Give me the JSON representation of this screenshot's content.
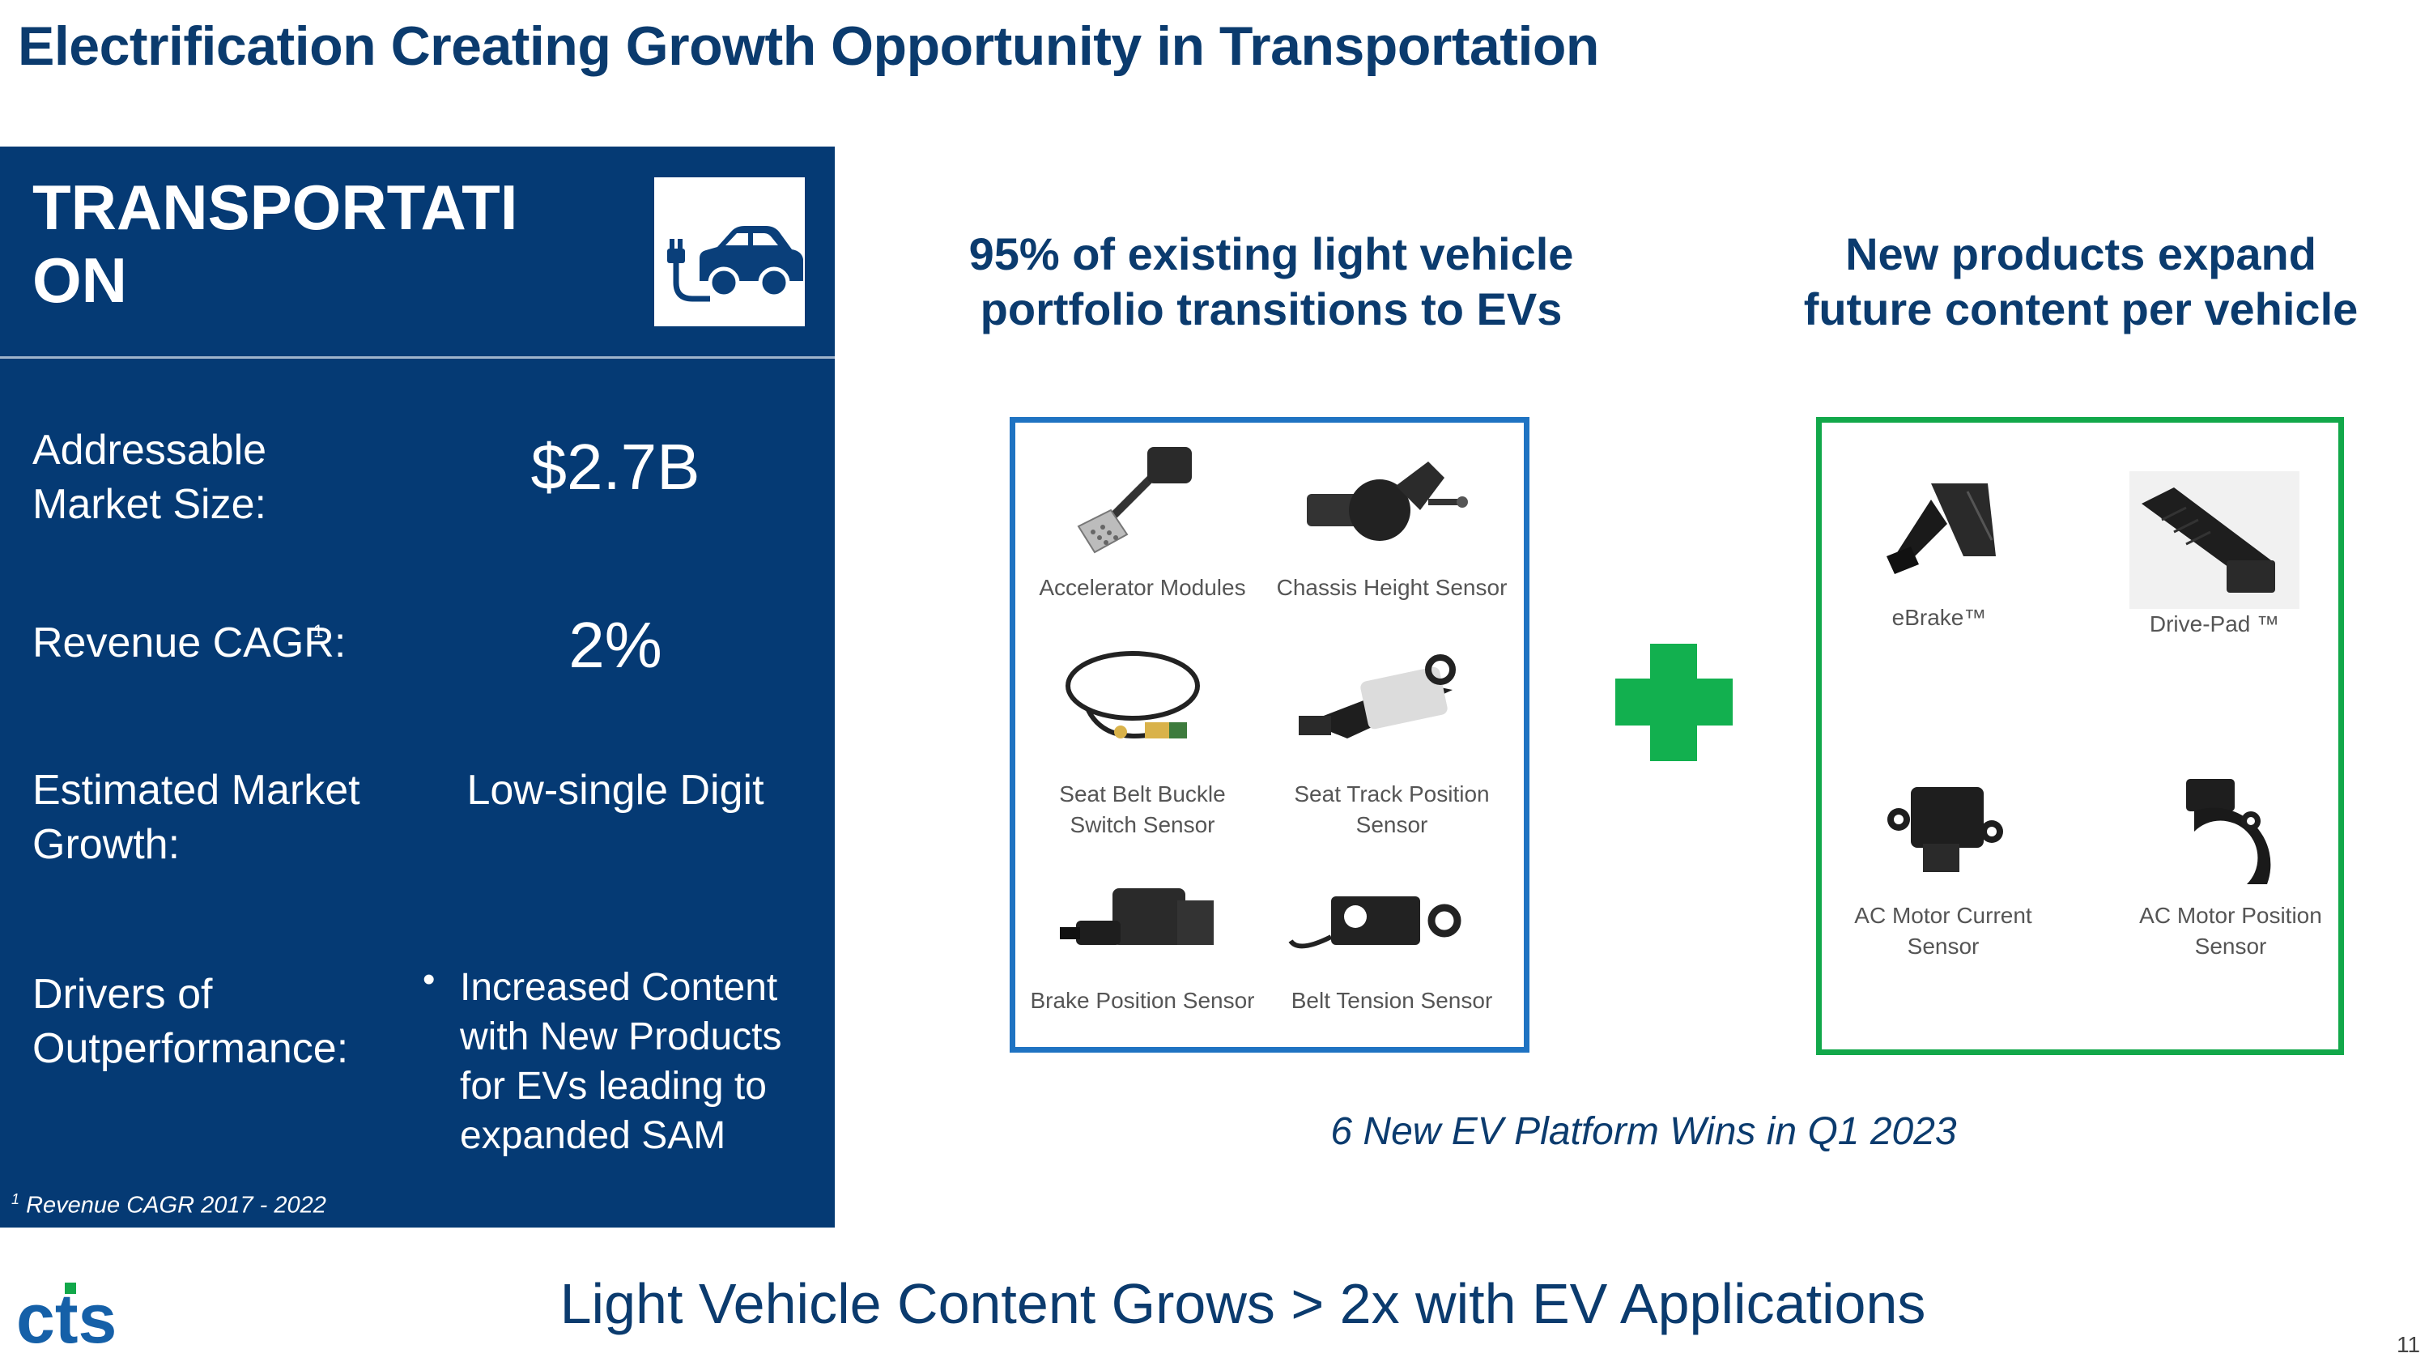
{
  "title": "Electrification Creating Growth Opportunity in Transportation",
  "panel": {
    "heading": "TRANSPORTATION",
    "market_size_label": "Addressable Market Size:",
    "market_size_value": "$2.7B",
    "cagr_label": "Revenue CAGR:",
    "cagr_sup": "1",
    "cagr_value": "2%",
    "growth_label": "Estimated Market Growth:",
    "growth_value": "Low-single Digit",
    "drivers_label": "Drivers of Outperformance:",
    "drivers_item": "Increased Content with New Products for EVs leading to expanded SAM",
    "footnote_sup": "1",
    "footnote": "Revenue CAGR 2017 - 2022"
  },
  "left_column": {
    "heading": "95% of existing light vehicle portfolio transitions to EVs",
    "products": [
      "Accelerator Modules",
      "Chassis Height Sensor",
      "Seat Belt Buckle Switch Sensor",
      "Seat Track Position Sensor",
      "Brake Position Sensor",
      "Belt Tension Sensor"
    ]
  },
  "right_column": {
    "heading": "New products expand future content per vehicle",
    "products": [
      "eBrake™",
      "Drive-Pad ™",
      "AC Motor Current Sensor",
      "AC Motor Position Sensor"
    ]
  },
  "wins_text": "6 New EV Platform Wins in Q1 2023",
  "bottom_line": "Light Vehicle Content Grows > 2x with EV Applications",
  "page_number": "11",
  "logo_text": "cts",
  "colors": {
    "navy": "#053a74",
    "title_blue": "#0b3b6e",
    "box_blue": "#1f73c2",
    "green": "#12a84a"
  }
}
